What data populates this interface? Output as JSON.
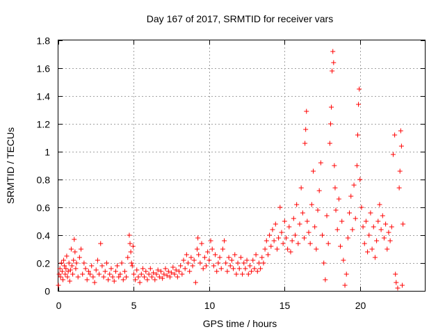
{
  "chart_data": {
    "type": "scatter",
    "title": "Day 167 of 2017, SRMTID for receiver vars",
    "xlabel": "GPS time / hours",
    "ylabel": "SRMTID / TECUs",
    "xlim": [
      0,
      24.3
    ],
    "ylim": [
      0,
      1.8
    ],
    "xticks": [
      0,
      5,
      10,
      15,
      20
    ],
    "xtick_labels": [
      "0",
      "5",
      "10",
      "15",
      "20"
    ],
    "yticks": [
      0,
      0.2,
      0.4,
      0.6,
      0.8,
      1.0,
      1.2,
      1.4,
      1.6,
      1.8
    ],
    "ytick_labels": [
      "0",
      "0.2",
      "0.4",
      "0.6",
      "0.8",
      "1",
      "1.2",
      "1.4",
      "1.6",
      "1.8"
    ],
    "grid": true,
    "marker": "+",
    "color": "#ff0000",
    "series": [
      {
        "name": "SRMTID",
        "points": [
          [
            0.0,
            0.04
          ],
          [
            0.05,
            0.12
          ],
          [
            0.1,
            0.16
          ],
          [
            0.15,
            0.1
          ],
          [
            0.2,
            0.2
          ],
          [
            0.25,
            0.14
          ],
          [
            0.3,
            0.08
          ],
          [
            0.35,
            0.22
          ],
          [
            0.4,
            0.18
          ],
          [
            0.45,
            0.12
          ],
          [
            0.5,
            0.16
          ],
          [
            0.55,
            0.25
          ],
          [
            0.6,
            0.1
          ],
          [
            0.65,
            0.14
          ],
          [
            0.7,
            0.2
          ],
          [
            0.75,
            0.07
          ],
          [
            0.8,
            0.15
          ],
          [
            0.85,
            0.3
          ],
          [
            0.9,
            0.18
          ],
          [
            0.95,
            0.12
          ],
          [
            1.0,
            0.22
          ],
          [
            1.05,
            0.37
          ],
          [
            1.1,
            0.28
          ],
          [
            1.15,
            0.16
          ],
          [
            1.2,
            0.2
          ],
          [
            1.3,
            0.1
          ],
          [
            1.4,
            0.24
          ],
          [
            1.5,
            0.3
          ],
          [
            1.6,
            0.12
          ],
          [
            1.7,
            0.2
          ],
          [
            1.8,
            0.16
          ],
          [
            1.9,
            0.08
          ],
          [
            2.0,
            0.14
          ],
          [
            2.1,
            0.12
          ],
          [
            2.2,
            0.18
          ],
          [
            2.3,
            0.1
          ],
          [
            2.4,
            0.06
          ],
          [
            2.5,
            0.15
          ],
          [
            2.6,
            0.22
          ],
          [
            2.7,
            0.12
          ],
          [
            2.8,
            0.34
          ],
          [
            2.9,
            0.18
          ],
          [
            3.0,
            0.1
          ],
          [
            3.1,
            0.14
          ],
          [
            3.2,
            0.2
          ],
          [
            3.3,
            0.08
          ],
          [
            3.4,
            0.12
          ],
          [
            3.5,
            0.16
          ],
          [
            3.6,
            0.1
          ],
          [
            3.7,
            0.07
          ],
          [
            3.8,
            0.14
          ],
          [
            3.9,
            0.18
          ],
          [
            4.0,
            0.1
          ],
          [
            4.1,
            0.12
          ],
          [
            4.2,
            0.2
          ],
          [
            4.3,
            0.08
          ],
          [
            4.4,
            0.14
          ],
          [
            4.5,
            0.1
          ],
          [
            4.6,
            0.24
          ],
          [
            4.7,
            0.4
          ],
          [
            4.75,
            0.34
          ],
          [
            4.8,
            0.28
          ],
          [
            4.85,
            0.2
          ],
          [
            4.9,
            0.18
          ],
          [
            4.95,
            0.32
          ],
          [
            5.0,
            0.12
          ],
          [
            5.1,
            0.08
          ],
          [
            5.2,
            0.15
          ],
          [
            5.3,
            0.1
          ],
          [
            5.4,
            0.06
          ],
          [
            5.5,
            0.12
          ],
          [
            5.6,
            0.16
          ],
          [
            5.7,
            0.1
          ],
          [
            5.8,
            0.14
          ],
          [
            5.9,
            0.08
          ],
          [
            6.0,
            0.12
          ],
          [
            6.1,
            0.16
          ],
          [
            6.2,
            0.1
          ],
          [
            6.3,
            0.13
          ],
          [
            6.4,
            0.08
          ],
          [
            6.5,
            0.12
          ],
          [
            6.6,
            0.15
          ],
          [
            6.7,
            0.1
          ],
          [
            6.8,
            0.14
          ],
          [
            6.9,
            0.09
          ],
          [
            7.0,
            0.12
          ],
          [
            7.1,
            0.16
          ],
          [
            7.2,
            0.11
          ],
          [
            7.3,
            0.14
          ],
          [
            7.4,
            0.1
          ],
          [
            7.5,
            0.13
          ],
          [
            7.6,
            0.17
          ],
          [
            7.7,
            0.12
          ],
          [
            7.8,
            0.15
          ],
          [
            7.9,
            0.1
          ],
          [
            8.0,
            0.14
          ],
          [
            8.1,
            0.18
          ],
          [
            8.2,
            0.12
          ],
          [
            8.3,
            0.22
          ],
          [
            8.4,
            0.16
          ],
          [
            8.5,
            0.26
          ],
          [
            8.6,
            0.2
          ],
          [
            8.7,
            0.14
          ],
          [
            8.8,
            0.24
          ],
          [
            8.9,
            0.18
          ],
          [
            9.0,
            0.22
          ],
          [
            9.1,
            0.06
          ],
          [
            9.2,
            0.3
          ],
          [
            9.25,
            0.38
          ],
          [
            9.3,
            0.26
          ],
          [
            9.4,
            0.2
          ],
          [
            9.5,
            0.34
          ],
          [
            9.6,
            0.16
          ],
          [
            9.7,
            0.24
          ],
          [
            9.8,
            0.18
          ],
          [
            9.9,
            0.28
          ],
          [
            10.0,
            0.22
          ],
          [
            10.1,
            0.36
          ],
          [
            10.2,
            0.3
          ],
          [
            10.3,
            0.18
          ],
          [
            10.4,
            0.26
          ],
          [
            10.5,
            0.14
          ],
          [
            10.6,
            0.2
          ],
          [
            10.7,
            0.24
          ],
          [
            10.8,
            0.16
          ],
          [
            10.9,
            0.3
          ],
          [
            11.0,
            0.36
          ],
          [
            11.1,
            0.2
          ],
          [
            11.2,
            0.14
          ],
          [
            11.3,
            0.24
          ],
          [
            11.4,
            0.18
          ],
          [
            11.5,
            0.22
          ],
          [
            11.6,
            0.16
          ],
          [
            11.7,
            0.26
          ],
          [
            11.8,
            0.12
          ],
          [
            11.9,
            0.2
          ],
          [
            12.0,
            0.16
          ],
          [
            12.1,
            0.24
          ],
          [
            12.2,
            0.12
          ],
          [
            12.3,
            0.2
          ],
          [
            12.4,
            0.16
          ],
          [
            12.5,
            0.22
          ],
          [
            12.6,
            0.12
          ],
          [
            12.7,
            0.18
          ],
          [
            12.8,
            0.14
          ],
          [
            12.9,
            0.22
          ],
          [
            13.0,
            0.16
          ],
          [
            13.1,
            0.26
          ],
          [
            13.2,
            0.14
          ],
          [
            13.3,
            0.2
          ],
          [
            13.4,
            0.16
          ],
          [
            13.5,
            0.24
          ],
          [
            13.6,
            0.2
          ],
          [
            13.7,
            0.3
          ],
          [
            13.8,
            0.36
          ],
          [
            13.9,
            0.26
          ],
          [
            14.0,
            0.4
          ],
          [
            14.1,
            0.32
          ],
          [
            14.2,
            0.44
          ],
          [
            14.3,
            0.36
          ],
          [
            14.4,
            0.48
          ],
          [
            14.5,
            0.3
          ],
          [
            14.6,
            0.38
          ],
          [
            14.7,
            0.6
          ],
          [
            14.8,
            0.42
          ],
          [
            14.9,
            0.34
          ],
          [
            15.0,
            0.5
          ],
          [
            15.1,
            0.38
          ],
          [
            15.2,
            0.3
          ],
          [
            15.3,
            0.46
          ],
          [
            15.4,
            0.28
          ],
          [
            15.5,
            0.36
          ],
          [
            15.6,
            0.52
          ],
          [
            15.7,
            0.4
          ],
          [
            15.8,
            0.62
          ],
          [
            15.9,
            0.34
          ],
          [
            16.0,
            0.48
          ],
          [
            16.1,
            0.74
          ],
          [
            16.2,
            0.56
          ],
          [
            16.3,
            0.38
          ],
          [
            16.35,
            1.06
          ],
          [
            16.4,
            1.16
          ],
          [
            16.45,
            1.29
          ],
          [
            16.5,
            0.5
          ],
          [
            16.6,
            0.42
          ],
          [
            16.7,
            0.34
          ],
          [
            16.8,
            0.62
          ],
          [
            16.9,
            0.86
          ],
          [
            17.0,
            0.46
          ],
          [
            17.1,
            0.3
          ],
          [
            17.2,
            0.58
          ],
          [
            17.3,
            0.72
          ],
          [
            17.4,
            0.92
          ],
          [
            17.5,
            0.4
          ],
          [
            17.6,
            0.2
          ],
          [
            17.7,
            0.08
          ],
          [
            17.8,
            0.54
          ],
          [
            17.9,
            0.34
          ],
          [
            18.0,
            1.06
          ],
          [
            18.05,
            1.2
          ],
          [
            18.1,
            1.32
          ],
          [
            18.15,
            1.58
          ],
          [
            18.2,
            1.72
          ],
          [
            18.25,
            1.64
          ],
          [
            18.3,
            0.9
          ],
          [
            18.35,
            0.74
          ],
          [
            18.4,
            0.58
          ],
          [
            18.5,
            0.44
          ],
          [
            18.6,
            0.66
          ],
          [
            18.7,
            0.32
          ],
          [
            18.8,
            0.5
          ],
          [
            18.9,
            0.22
          ],
          [
            19.0,
            0.04
          ],
          [
            19.1,
            0.12
          ],
          [
            19.2,
            0.38
          ],
          [
            19.3,
            0.56
          ],
          [
            19.4,
            0.68
          ],
          [
            19.5,
            0.44
          ],
          [
            19.6,
            0.76
          ],
          [
            19.7,
            0.52
          ],
          [
            19.8,
            0.9
          ],
          [
            19.85,
            1.12
          ],
          [
            19.9,
            1.34
          ],
          [
            19.95,
            1.45
          ],
          [
            20.0,
            0.8
          ],
          [
            20.1,
            0.6
          ],
          [
            20.2,
            0.46
          ],
          [
            20.3,
            0.34
          ],
          [
            20.4,
            0.5
          ],
          [
            20.5,
            0.28
          ],
          [
            20.6,
            0.4
          ],
          [
            20.7,
            0.56
          ],
          [
            20.8,
            0.3
          ],
          [
            20.9,
            0.46
          ],
          [
            21.0,
            0.24
          ],
          [
            21.1,
            0.36
          ],
          [
            21.2,
            0.5
          ],
          [
            21.3,
            0.62
          ],
          [
            21.4,
            0.44
          ],
          [
            21.5,
            0.54
          ],
          [
            21.6,
            0.38
          ],
          [
            21.7,
            0.48
          ],
          [
            21.8,
            0.3
          ],
          [
            21.9,
            0.42
          ],
          [
            22.0,
            0.36
          ],
          [
            22.1,
            0.46
          ],
          [
            22.2,
            0.98
          ],
          [
            22.3,
            1.12
          ],
          [
            22.35,
            0.12
          ],
          [
            22.4,
            0.06
          ],
          [
            22.5,
            0.02
          ],
          [
            22.6,
            0.74
          ],
          [
            22.65,
            0.86
          ],
          [
            22.7,
            1.15
          ],
          [
            22.75,
            1.04
          ],
          [
            22.8,
            0.04
          ],
          [
            22.85,
            0.48
          ]
        ]
      }
    ]
  }
}
